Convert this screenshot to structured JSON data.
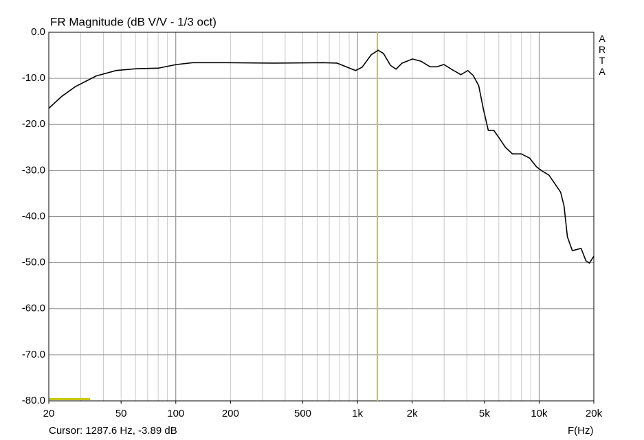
{
  "chart_data": {
    "type": "line",
    "title": "FR Magnitude (dB V/V - 1/3 oct)",
    "x_label": "F(Hz)",
    "side_label": "ARTA",
    "log_x": true,
    "grid": true,
    "x": [
      20,
      23.6,
      28,
      36.4,
      47,
      61,
      80,
      101,
      124,
      191,
      352,
      647,
      772,
      880,
      977,
      1060,
      1190,
      1300,
      1390,
      1520,
      1630,
      1760,
      2010,
      2240,
      2510,
      2730,
      2990,
      3350,
      3710,
      4050,
      4340,
      4650,
      4940,
      5250,
      5630,
      5990,
      6530,
      7130,
      7980,
      8860,
      9670,
      10370,
      11320,
      12030,
      13130,
      13710,
      14310,
      15230,
      17020,
      18090,
      18910,
      20000
    ],
    "series": [
      {
        "name": "FR Magnitude",
        "color": "#000000",
        "values": [
          -16.5,
          -13.9,
          -11.8,
          -9.5,
          -8.3,
          -7.9,
          -7.8,
          -7.0,
          -6.6,
          -6.6,
          -6.7,
          -6.6,
          -6.7,
          -7.6,
          -8.3,
          -7.6,
          -4.9,
          -3.9,
          -4.6,
          -7.2,
          -8.0,
          -6.7,
          -5.8,
          -6.3,
          -7.5,
          -7.5,
          -7.0,
          -8.2,
          -9.2,
          -8.3,
          -9.4,
          -11.6,
          -16.8,
          -21.3,
          -21.3,
          -22.8,
          -25.0,
          -26.4,
          -26.4,
          -27.3,
          -29.2,
          -30.1,
          -31.0,
          -32.5,
          -34.7,
          -37.7,
          -44.4,
          -47.4,
          -46.9,
          -49.6,
          -50.1,
          -48.6
        ]
      }
    ],
    "xlim": [
      20,
      20000
    ],
    "xticks": [
      20,
      50,
      100,
      200,
      500,
      {
        "value": 1000,
        "label": "1k"
      },
      {
        "value": 2000,
        "label": "2k"
      },
      {
        "value": 5000,
        "label": "5k"
      },
      {
        "value": 10000,
        "label": "10k"
      },
      {
        "value": 20000,
        "label": "20k"
      }
    ],
    "ylim": [
      -80,
      0
    ],
    "yticks": [
      {
        "value": 0,
        "label": "0.0"
      },
      {
        "value": -10,
        "label": "-10.0"
      },
      {
        "value": -20,
        "label": "-20.0"
      },
      {
        "value": -30,
        "label": "-30.0"
      },
      {
        "value": -40,
        "label": "-40.0"
      },
      {
        "value": -50,
        "label": "-50.0"
      },
      {
        "value": -60,
        "label": "-60.0"
      },
      {
        "value": -70,
        "label": "-70.0"
      },
      {
        "value": -80,
        "label": "-80.0"
      }
    ],
    "cursor": {
      "label": "Cursor: 1287.6 Hz, -3.89 dB",
      "x": 1287.6,
      "y": -3.89,
      "color": "#c8c800"
    }
  }
}
